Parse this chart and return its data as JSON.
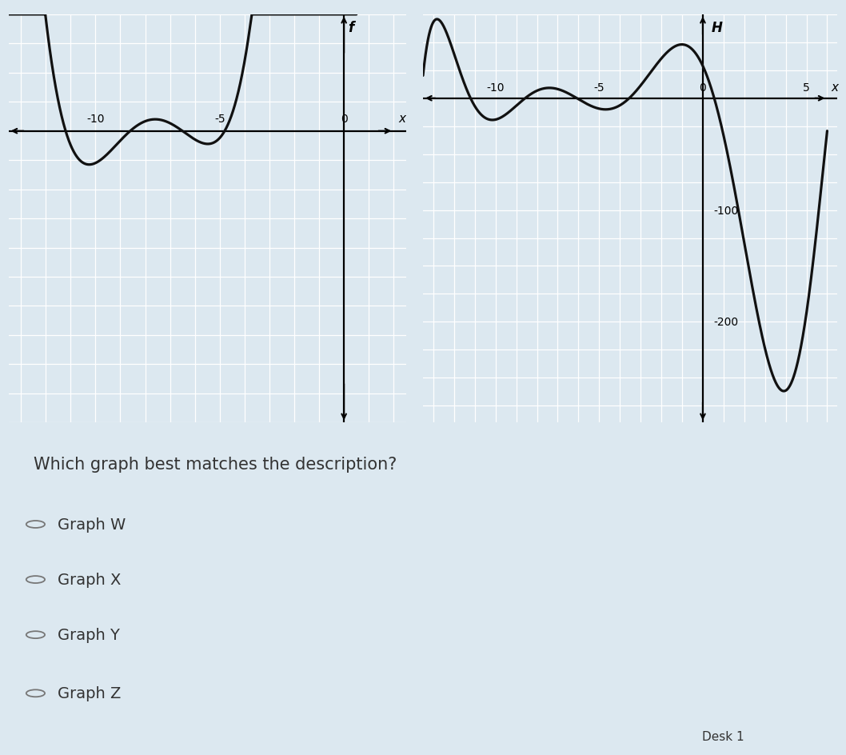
{
  "bg_main": "#dce8f0",
  "left_graph": {
    "xlim": [
      -13.5,
      2.5
    ],
    "ylim": [
      -5.0,
      2.0
    ],
    "bg_color": "#cddcec",
    "grid_color": "#ffffff",
    "curve_color": "#111111",
    "axis_label_x": "x",
    "axis_label_y": "f",
    "x_tick_labels": [
      [
        -10,
        "-10"
      ],
      [
        -5,
        "-5"
      ],
      [
        0,
        "0"
      ]
    ],
    "grid_major_x": 1,
    "grid_major_y": 0.5,
    "curve_roots": [
      -11.2,
      -8.6,
      -6.5,
      -4.8
    ],
    "curve_scale": 0.018
  },
  "right_graph": {
    "xlim": [
      -13.5,
      6.5
    ],
    "ylim": [
      -290,
      75
    ],
    "bg_color": "#cddcec",
    "grid_color": "#ffffff",
    "curve_color": "#111111",
    "axis_label_x": "x",
    "axis_label_y": "H",
    "x_tick_labels": [
      [
        -10,
        "-10"
      ],
      [
        -5,
        "-5"
      ],
      [
        0,
        "0"
      ],
      [
        5,
        "5"
      ]
    ],
    "y_tick_labels": [
      [
        -100,
        "-100"
      ],
      [
        -200,
        "-200"
      ]
    ],
    "grid_major_x": 1,
    "grid_major_y": 25,
    "keypoints_x": [
      -13,
      -11.8,
      -10.5,
      -9.5,
      -9.0,
      -8.5,
      -7.5,
      -6.5,
      -5.0,
      -3.0,
      -1.5,
      -0.5,
      0.5,
      1.5,
      2.5,
      3.5,
      4.5,
      5.5
    ],
    "keypoints_y": [
      70,
      20,
      -5,
      -12,
      -10,
      -5,
      5,
      2,
      5,
      10,
      30,
      40,
      15,
      -60,
      -200,
      -260,
      -230,
      -120
    ]
  },
  "question_text": "Which graph best matches the description?",
  "options": [
    "Graph W",
    "Graph X",
    "Graph Y",
    "Graph Z"
  ],
  "footer": "Desk 1",
  "text_color": "#333333",
  "option_circle_color": "#777777",
  "question_fontsize": 15,
  "option_fontsize": 14
}
